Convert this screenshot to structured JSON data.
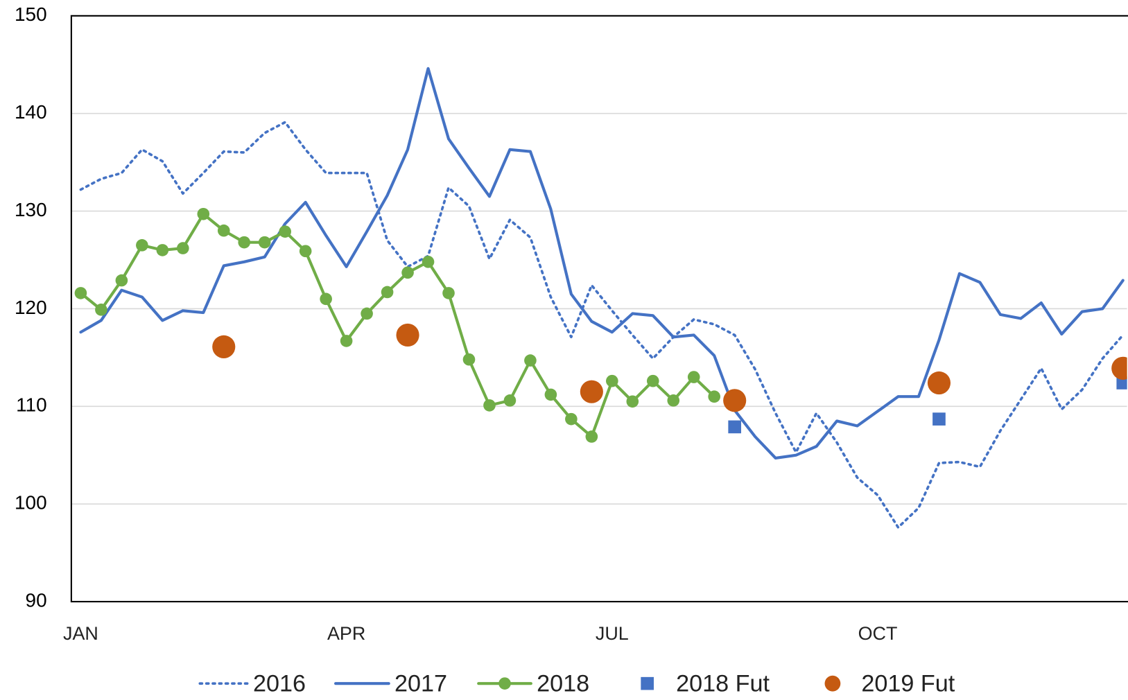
{
  "chart_data": {
    "type": "line",
    "xlim": [
      -0.46,
      51.2
    ],
    "xticks": [
      {
        "value": 0,
        "label": "JAN"
      },
      {
        "value": 13,
        "label": "APR"
      },
      {
        "value": 26,
        "label": "JUL"
      },
      {
        "value": 39,
        "label": "OCT"
      }
    ],
    "ylim": [
      90,
      150
    ],
    "yticks": [
      90,
      100,
      110,
      120,
      130,
      140,
      150
    ],
    "grid": true,
    "legend": "bottom",
    "series": [
      {
        "name": "2016",
        "color": "#4472c4",
        "style": "dotted",
        "x": [
          0,
          1,
          2,
          3,
          4,
          5,
          6,
          7,
          8,
          9,
          10,
          11,
          12,
          13,
          14,
          15,
          16,
          17,
          18,
          19,
          20,
          21,
          22,
          23,
          24,
          25,
          26,
          27,
          28,
          29,
          30,
          31,
          32,
          33,
          34,
          35,
          36,
          37,
          38,
          39,
          40,
          41,
          42,
          43,
          44,
          45,
          46,
          47,
          48,
          49,
          50,
          51
        ],
        "values": [
          132.2,
          133.3,
          133.9,
          136.3,
          135.1,
          131.8,
          133.9,
          136.1,
          136.0,
          138.0,
          139.1,
          136.3,
          133.9,
          133.9,
          133.9,
          127.0,
          124.3,
          125.4,
          132.4,
          130.5,
          125.1,
          129.1,
          127.3,
          121.2,
          117.1,
          122.4,
          119.8,
          117.3,
          114.9,
          117.1,
          118.9,
          118.4,
          117.3,
          113.8,
          109.3,
          105.3,
          109.3,
          106.3,
          102.7,
          100.9,
          97.6,
          99.6,
          104.2,
          104.3,
          103.8,
          107.5,
          110.7,
          113.9,
          109.7,
          111.7,
          114.9,
          117.3
        ]
      },
      {
        "name": "2017",
        "color": "#4472c4",
        "style": "solid",
        "x": [
          0,
          1,
          2,
          3,
          4,
          5,
          6,
          7,
          8,
          9,
          10,
          11,
          12,
          13,
          14,
          15,
          16,
          17,
          18,
          19,
          20,
          21,
          22,
          23,
          24,
          25,
          26,
          27,
          28,
          29,
          30,
          31,
          32,
          33,
          34,
          35,
          36,
          37,
          38,
          39,
          40,
          41,
          42,
          43,
          44,
          45,
          46,
          47,
          48,
          49,
          50,
          51
        ],
        "values": [
          117.6,
          118.8,
          121.9,
          121.2,
          118.8,
          119.8,
          119.6,
          124.4,
          124.8,
          125.3,
          128.7,
          130.9,
          127.5,
          124.3,
          127.9,
          131.6,
          136.3,
          144.6,
          137.4,
          134.4,
          131.5,
          136.3,
          136.1,
          130.2,
          121.5,
          118.7,
          117.6,
          119.5,
          119.3,
          117.1,
          117.3,
          115.2,
          109.6,
          106.9,
          104.7,
          105.0,
          105.9,
          108.5,
          108.0,
          109.5,
          111.0,
          111.0,
          116.8,
          123.6,
          122.7,
          119.4,
          119.0,
          120.6,
          117.4,
          119.7,
          120.0,
          122.9
        ]
      },
      {
        "name": "2018",
        "color": "#70ad47",
        "style": "line-marker",
        "x": [
          0,
          1,
          2,
          3,
          4,
          5,
          6,
          7,
          8,
          9,
          10,
          11,
          12,
          13,
          14,
          15,
          16,
          17,
          18,
          19,
          20,
          21,
          22,
          23,
          24,
          25,
          26,
          27,
          28,
          29,
          30,
          31
        ],
        "values": [
          121.6,
          119.9,
          122.9,
          126.5,
          126.0,
          126.2,
          129.7,
          128.0,
          126.8,
          126.8,
          127.9,
          125.9,
          121.0,
          116.7,
          119.5,
          121.7,
          123.7,
          124.8,
          121.6,
          114.8,
          110.1,
          110.6,
          114.7,
          111.2,
          108.7,
          106.9,
          112.6,
          110.5,
          112.6,
          110.6,
          113.0,
          111.0
        ]
      },
      {
        "name": "2018 Fut",
        "color": "#4472c4",
        "style": "square",
        "x": [
          32,
          42,
          51
        ],
        "values": [
          107.9,
          108.7,
          112.4
        ]
      },
      {
        "name": "2019 Fut",
        "color": "#c55a11",
        "style": "circle",
        "x": [
          7,
          16,
          25,
          32,
          42,
          51
        ],
        "values": [
          116.1,
          117.3,
          111.5,
          110.6,
          112.4,
          113.9
        ]
      }
    ]
  }
}
